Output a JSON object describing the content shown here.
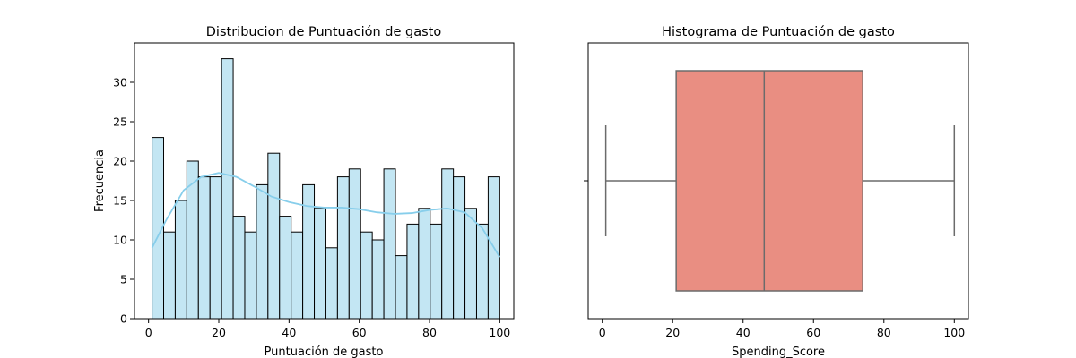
{
  "chart_data": [
    {
      "type": "bar",
      "title": "Distribucion de Puntuación de gasto",
      "xlabel": "Puntuación de gasto",
      "ylabel": "Frecuencia",
      "xlim": [
        -4,
        104
      ],
      "ylim": [
        0,
        35
      ],
      "xticks": [
        0,
        20,
        40,
        60,
        80,
        100
      ],
      "yticks": [
        0,
        5,
        10,
        15,
        20,
        25,
        30
      ],
      "bin_edges": [
        1,
        4.3,
        7.6,
        10.9,
        14.2,
        17.5,
        20.8,
        24.1,
        27.4,
        30.7,
        34,
        37.3,
        40.6,
        43.9,
        47.2,
        50.5,
        53.8,
        57.1,
        60.4,
        63.7,
        67,
        70.3,
        73.6,
        76.9,
        80.2,
        83.5,
        86.8,
        90.1,
        93.4,
        96.7,
        100
      ],
      "values": [
        23,
        11,
        15,
        20,
        18,
        18,
        33,
        13,
        11,
        17,
        21,
        13,
        11,
        17,
        14,
        9,
        18,
        19,
        11,
        10,
        19,
        8,
        12,
        14,
        12,
        19,
        18,
        14,
        12,
        18
      ],
      "kde": {
        "x": [
          1,
          5,
          10,
          15,
          20,
          25,
          30,
          35,
          40,
          45,
          50,
          55,
          60,
          65,
          70,
          75,
          80,
          85,
          90,
          95,
          100
        ],
        "y": [
          9,
          12.5,
          16.3,
          18,
          18.5,
          18,
          16.8,
          15.5,
          14.8,
          14.3,
          14.1,
          14.1,
          13.9,
          13.5,
          13.3,
          13.4,
          13.8,
          14.0,
          13.5,
          11.5,
          7.8
        ]
      },
      "colors": {
        "bar_fill": "#c3e6f3",
        "bar_edge": "#000000",
        "kde_line": "#87ceeb"
      }
    },
    {
      "type": "box",
      "title": "Histograma de Puntuación de gasto",
      "xlabel": "Spending_Score",
      "ylabel": "",
      "xlim": [
        -4,
        104
      ],
      "xticks": [
        0,
        20,
        40,
        60,
        80,
        100
      ],
      "stats": {
        "whisker_low": 1,
        "q1": 21,
        "median": 46,
        "q3": 74,
        "whisker_high": 100
      },
      "colors": {
        "box_fill": "#e98e82",
        "lines": "#6b6b6b"
      }
    }
  ]
}
